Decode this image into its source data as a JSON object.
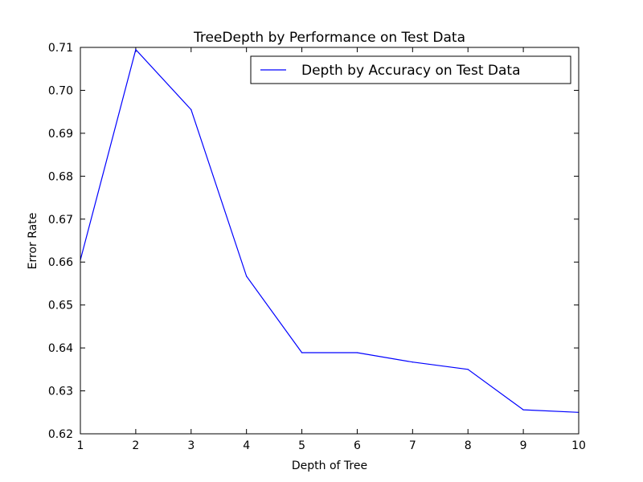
{
  "chart_data": {
    "type": "line",
    "title": "TreeDepth by Performance on Test Data",
    "xlabel": "Depth of Tree",
    "ylabel": "Error Rate",
    "xlim": [
      1,
      10
    ],
    "ylim": [
      0.62,
      0.71
    ],
    "x_ticks": [
      "1",
      "2",
      "3",
      "4",
      "5",
      "6",
      "7",
      "8",
      "9",
      "10"
    ],
    "y_ticks": [
      "0.62",
      "0.63",
      "0.64",
      "0.65",
      "0.66",
      "0.67",
      "0.68",
      "0.69",
      "0.70",
      "0.71"
    ],
    "grid": false,
    "legend_position": "top-right",
    "series": [
      {
        "name": "Depth by Accuracy on Test Data",
        "color": "#0000ff",
        "x": [
          1,
          2,
          3,
          4,
          5,
          6,
          7,
          8,
          9,
          10
        ],
        "y": [
          0.6605,
          0.7095,
          0.6955,
          0.6567,
          0.6389,
          0.6389,
          0.6367,
          0.635,
          0.6256,
          0.625
        ]
      }
    ]
  }
}
